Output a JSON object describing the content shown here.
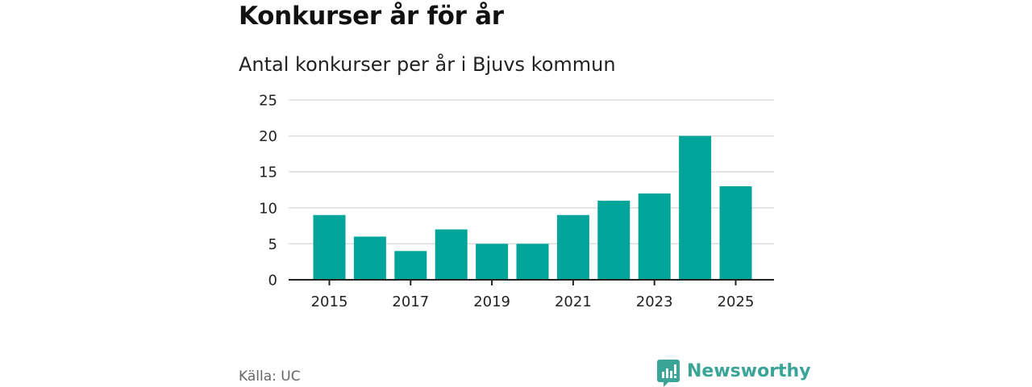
{
  "title": "Konkurser år för år",
  "subtitle": "Antal konkurser per år i Bjuvs kommun",
  "source": "Källa: UC",
  "brand": {
    "name": "Newsworthy",
    "icon": "newsworthy-logo-icon",
    "color": "#3aa597"
  },
  "colors": {
    "bar": "#00a599",
    "grid": "#dddddd",
    "axis": "#222222"
  },
  "chart_data": {
    "type": "bar",
    "title": "Konkurser år för år",
    "subtitle": "Antal konkurser per år i Bjuvs kommun",
    "categories": [
      "2015",
      "2016",
      "2017",
      "2018",
      "2019",
      "2020",
      "2021",
      "2022",
      "2023",
      "2024",
      "2025"
    ],
    "values": [
      9,
      6,
      4,
      7,
      5,
      5,
      9,
      11,
      12,
      20,
      13
    ],
    "x_tick_labels": [
      "2015",
      "2017",
      "2019",
      "2021",
      "2023",
      "2025"
    ],
    "y_ticks": [
      0,
      5,
      10,
      15,
      20,
      25
    ],
    "ylim": [
      0,
      25
    ],
    "xlabel": "",
    "ylabel": "",
    "grid": true,
    "legend": "none"
  }
}
